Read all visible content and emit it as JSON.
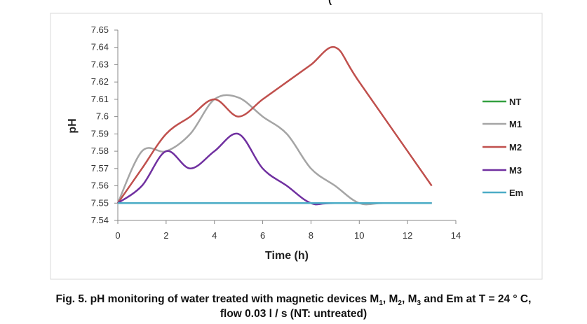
{
  "header_fragment": "(",
  "caption": {
    "line1_parts": [
      "Fig. 5. pH monitoring of water treated with magnetic devices M",
      "1",
      ", M",
      "2",
      ", M",
      "3",
      " and Em at T = 24 ° C,"
    ],
    "line2": "flow 0.03 l / s (NT: untreated)"
  },
  "chart_data": {
    "type": "line",
    "xlabel": "Time (h)",
    "ylabel": "pH",
    "xlim": [
      0,
      14
    ],
    "ylim": [
      7.54,
      7.65
    ],
    "x_ticks": [
      0,
      2,
      4,
      6,
      8,
      10,
      12,
      14
    ],
    "y_ticks": [
      7.54,
      7.55,
      7.56,
      7.57,
      7.58,
      7.59,
      7.6,
      7.61,
      7.62,
      7.63,
      7.64,
      7.65
    ],
    "y_tick_labels": [
      "7.54",
      "7.55",
      "7.56",
      "7.57",
      "7.58",
      "7.59",
      "7.6",
      "7.61",
      "7.62",
      "7.63",
      "7.64",
      "7.65"
    ],
    "legend_position": "right",
    "grid": false,
    "series": [
      {
        "name": "NT",
        "color": "#33a040",
        "x": [
          0,
          13
        ],
        "y": [
          7.55,
          7.55
        ],
        "smooth": false
      },
      {
        "name": "M1",
        "color": "#a5a5a5",
        "x": [
          0,
          1,
          2,
          3,
          4,
          5,
          6,
          7,
          8,
          9,
          10,
          11,
          13
        ],
        "y": [
          7.55,
          7.58,
          7.58,
          7.59,
          7.61,
          7.611,
          7.6,
          7.59,
          7.57,
          7.56,
          7.55,
          7.55,
          7.55
        ],
        "smooth": true
      },
      {
        "name": "M2",
        "color": "#c0504d",
        "x": [
          0,
          1,
          2,
          3,
          4,
          5,
          6,
          7,
          8,
          9,
          10,
          13
        ],
        "y": [
          7.55,
          7.57,
          7.59,
          7.6,
          7.61,
          7.6,
          7.61,
          7.62,
          7.63,
          7.64,
          7.62,
          7.56
        ],
        "smooth": true
      },
      {
        "name": "M3",
        "color": "#7030a0",
        "x": [
          0,
          1,
          2,
          3,
          4,
          5,
          6,
          7,
          8,
          9,
          13
        ],
        "y": [
          7.55,
          7.56,
          7.58,
          7.57,
          7.58,
          7.59,
          7.57,
          7.56,
          7.55,
          7.55,
          7.55
        ],
        "smooth": true
      },
      {
        "name": "Em",
        "color": "#4bacc6",
        "x": [
          0,
          13
        ],
        "y": [
          7.55,
          7.55
        ],
        "smooth": false
      }
    ]
  }
}
